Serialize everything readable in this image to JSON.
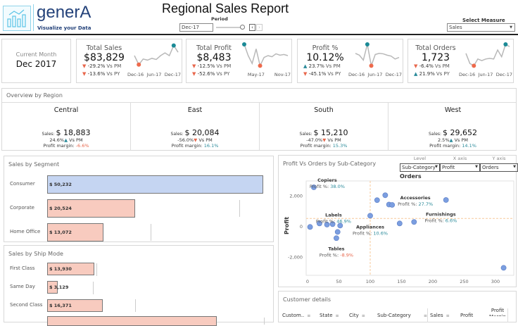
{
  "header": {
    "brand": "generA",
    "tagline": "Visualize your Data",
    "title": "Regional Sales Report",
    "period_label": "Period",
    "period_value": "Dec-17",
    "measure_label": "Select Measure",
    "measure_value": "Sales"
  },
  "current_month": {
    "label": "Current Month",
    "value": "Dec 2017"
  },
  "kpis": [
    {
      "title": "Total Sales",
      "value": "$83,829",
      "pm": "-29.2%",
      "pm_dir": "down",
      "py": "-13.6%",
      "py_dir": "down",
      "pm_suffix": "Vs PM",
      "py_suffix": "Vs PY",
      "axis": [
        "Dec-16",
        "Jun-17",
        "Dec-17"
      ],
      "spark": [
        0.5,
        0.1,
        0.35,
        0.3,
        0.38,
        0.33,
        0.5,
        0.62,
        0.5,
        0.95,
        0.65
      ]
    },
    {
      "title": "Total Profit",
      "value": "$8,483",
      "pm": "-12.5%",
      "pm_dir": "down",
      "py": "-52.6%",
      "py_dir": "down",
      "pm_suffix": "Vs PM",
      "py_suffix": "Vs PY",
      "axis": [
        "May-17",
        "Nov-17"
      ],
      "spark": [
        1,
        0.5,
        0.15,
        0.8,
        0.05,
        0.42,
        0.5,
        0.45,
        0.58,
        0.52,
        0.55,
        0.5
      ],
      "max_first": true
    },
    {
      "title": "Profit %",
      "value": "10.12%",
      "pm": "23.7%",
      "pm_dir": "up",
      "py": "-45.1%",
      "py_dir": "down",
      "pm_suffix": "Vs PM",
      "py_suffix": "Vs PY",
      "axis": [
        "Dec-16",
        "Jun-17",
        "Dec-17"
      ],
      "spark": [
        0.6,
        0.52,
        0.3,
        1,
        0.05,
        0.55,
        0.6,
        0.58,
        0.52,
        0.48,
        0.35,
        0.42
      ]
    },
    {
      "title": "Total Orders",
      "value": "1,723",
      "pm": "-6.4%",
      "pm_dir": "down",
      "py": "21.9%",
      "py_dir": "up",
      "pm_suffix": "Vs PM",
      "py_suffix": "Vs PY",
      "axis": [
        "Dec-16",
        "Jun-17",
        "Dec-17"
      ],
      "spark": [
        0.6,
        0.15,
        0.05,
        0.35,
        0.28,
        0.35,
        0.38,
        0.35,
        0.75,
        0.45,
        1,
        0.9
      ]
    }
  ],
  "overview": {
    "title": "Overview by Region",
    "sales_label": "Sales:",
    "vs_label": "Vs PM",
    "margin_label": "Profit margin:",
    "regions": [
      {
        "name": "Central",
        "sales": "$ 18,883",
        "pm": "24.6%",
        "pm_dir": "up",
        "margin": "-6.6%",
        "margin_dir": "down"
      },
      {
        "name": "East",
        "sales": "$ 20,084",
        "pm": "-56.0%",
        "pm_dir": "down",
        "margin": "16.1%",
        "margin_dir": "up"
      },
      {
        "name": "South",
        "sales": "$ 15,210",
        "pm": "-47.0%",
        "pm_dir": "down",
        "margin": "15.3%",
        "margin_dir": "up"
      },
      {
        "name": "West",
        "sales": "$ 29,652",
        "pm": "2.5%",
        "pm_dir": "up",
        "margin": "14.1%",
        "margin_dir": "up"
      }
    ]
  },
  "segment": {
    "title": "Sales by Segment",
    "rows": [
      {
        "label": "Consumer",
        "value": 50232,
        "text": "$ 50,232",
        "highlight": true
      },
      {
        "label": "Corporate",
        "value": 20524,
        "text": "$ 20,524"
      },
      {
        "label": "Home Office",
        "value": 13072,
        "text": "$ 13,072"
      }
    ]
  },
  "shipmode": {
    "title": "Sales by Ship Mode",
    "rows": [
      {
        "label": "First Class",
        "value": 13930,
        "text": "$ 13,930"
      },
      {
        "label": "Same Day",
        "value": 3129,
        "text": "$ 3,129"
      },
      {
        "label": "Second Class",
        "value": 16371,
        "text": "$ 16,371"
      }
    ]
  },
  "colors": {
    "up": "#2a8a9a",
    "down": "#e8674c",
    "bar": "#f8cbbf",
    "bar_highlight": "#c5d5f2",
    "point": "#7b9ee0",
    "ref": "#f7c99a",
    "max_dot": "#1b8a96",
    "min_dot": "#ee6a4c"
  },
  "scatter": {
    "title": "Profit Vs Orders by Sub-Category",
    "controls": [
      {
        "label": "Level",
        "value": "Sub-Category"
      },
      {
        "label": "X axis",
        "value": "Profit"
      },
      {
        "label": "Y axis",
        "value": "Orders"
      }
    ],
    "chart_data": {
      "type": "scatter",
      "xlabel": "Orders",
      "ylabel": "Profit",
      "xlim": [
        0,
        310
      ],
      "ylim": [
        -2700,
        2700
      ],
      "xticks": [
        0,
        50,
        100,
        150,
        200,
        250,
        300
      ],
      "yticks": [
        -2000,
        0,
        2000
      ],
      "yticklabels": [
        "-2,000",
        "0",
        "2,000"
      ],
      "ref_x": 100,
      "ref_y": 540,
      "points": [
        [
          10,
          2580
        ],
        [
          4,
          -15
        ],
        [
          19,
          215
        ],
        [
          31,
          140
        ],
        [
          40,
          170
        ],
        [
          52,
          75
        ],
        [
          48,
          -340
        ],
        [
          46,
          -750
        ],
        [
          100,
          720
        ],
        [
          111,
          1740
        ],
        [
          124,
          2060
        ],
        [
          130,
          1450
        ],
        [
          135,
          1430
        ],
        [
          147,
          215
        ],
        [
          170,
          310
        ],
        [
          221,
          1750
        ],
        [
          313,
          -2690
        ]
      ],
      "annotations": [
        {
          "name": "Copiers",
          "pct": "38.0%",
          "dir": "up",
          "x": 10,
          "y": 2580
        },
        {
          "name": "Labels",
          "pct": "46.9%",
          "dir": "up",
          "x": 19,
          "y": 215
        },
        {
          "name": "Accessories",
          "pct": "27.7%",
          "dir": "up",
          "x": 135,
          "y": 1430
        },
        {
          "name": "Appliances",
          "pct": "10.6%",
          "dir": "up",
          "x": 100,
          "y": 720
        },
        {
          "name": "Furnishings",
          "pct": "6.6%",
          "dir": "up",
          "x": 170,
          "y": 310
        },
        {
          "name": "Tables",
          "pct": "-8.9%",
          "dir": "down",
          "x": 46,
          "y": -750
        }
      ],
      "pct_label": "Profit %:"
    }
  },
  "customers": {
    "title": "Customer details",
    "columns": [
      "Custom..",
      "State",
      "City",
      "Sub-Category",
      "Sales",
      "Profit",
      "Profit Margin"
    ]
  }
}
